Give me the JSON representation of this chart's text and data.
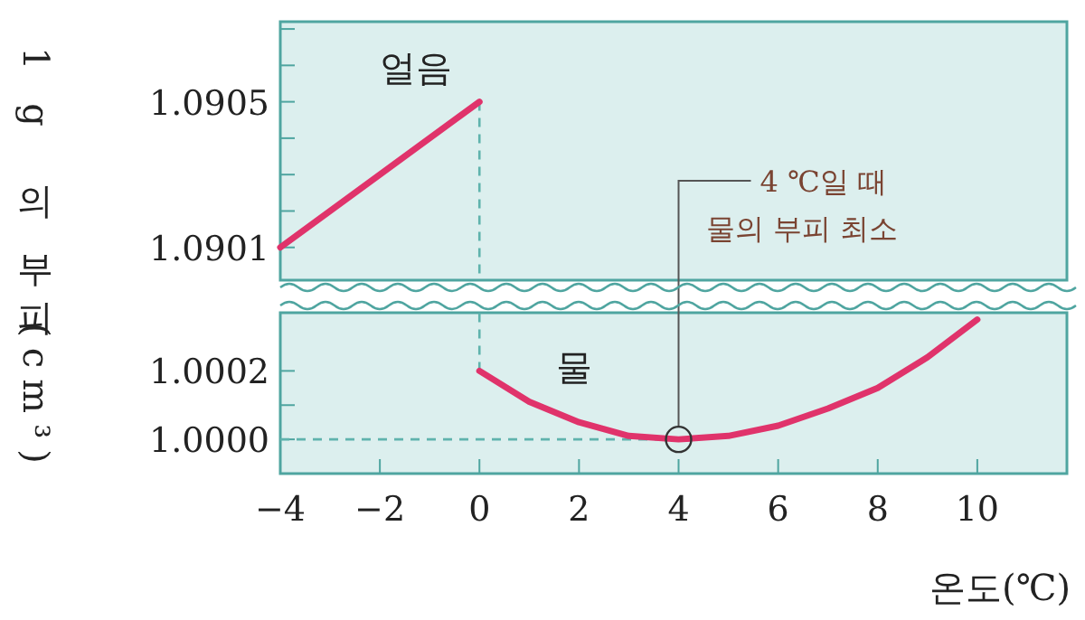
{
  "chart_data": [
    {
      "type": "line",
      "x": [
        -4,
        0
      ],
      "series": [
        {
          "name": "얼음",
          "color": "#e0336b",
          "values": [
            1.0901,
            1.0905
          ]
        }
      ],
      "xlim": [
        -4,
        11.8
      ],
      "ylim": [
        1.09001,
        1.09072
      ],
      "yticks": [
        {
          "value": 1.0901,
          "label": "1.0901"
        },
        {
          "value": 1.0902,
          "label": null
        },
        {
          "value": 1.0903,
          "label": null
        },
        {
          "value": 1.0904,
          "label": null
        },
        {
          "value": 1.0905,
          "label": "1.0905"
        },
        {
          "value": 1.0906,
          "label": null
        },
        {
          "value": 1.0907,
          "label": null
        }
      ],
      "ylabel": "1 g 의 부피(cm³)",
      "tick_labels": "y",
      "ref_lines": [
        {
          "axis": "x",
          "value": 0,
          "color": "#5fb3ad",
          "line_style": "dashed"
        }
      ]
    },
    {
      "type": "line",
      "x": [
        0,
        1,
        2,
        3,
        4,
        5,
        6,
        7,
        8,
        9,
        10
      ],
      "series": [
        {
          "name": "물",
          "color": "#e0336b",
          "values": [
            1.0002,
            1.00011,
            1.00005,
            1.00001,
            1.0,
            1.00001,
            1.00004,
            1.00009,
            1.00015,
            1.00024,
            1.00035
          ]
        }
      ],
      "xlim": [
        -4,
        11.8
      ],
      "ylim": [
        0.9999,
        1.00037
      ],
      "xticks": [
        -4,
        -2,
        0,
        2,
        4,
        6,
        8,
        10
      ],
      "yticks": [
        {
          "value": 1.0,
          "label": "1.0000"
        },
        {
          "value": 1.0001,
          "label": null
        },
        {
          "value": 1.0002,
          "label": "1.0002"
        }
      ],
      "xlabel": "온도(℃)",
      "ref_lines": [
        {
          "axis": "y",
          "value": 1.0,
          "color": "#5fb3ad",
          "line_style": "dashed"
        },
        {
          "axis": "x",
          "value": 0,
          "color": "#5fb3ad",
          "line_style": "dashed"
        }
      ],
      "annotations": [
        {
          "text": "4 ℃일 때\n물의 부피 최소",
          "x": 4,
          "y": 1.0
        }
      ]
    }
  ]
}
